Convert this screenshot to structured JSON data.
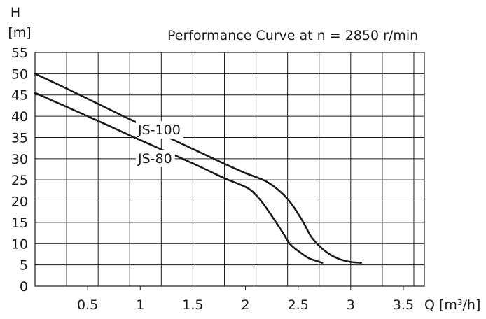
{
  "chart_data": {
    "type": "line",
    "title": "Performance Curve at n = 2850 r/min",
    "ylabel_symbol": "H",
    "ylabel_unit": "[m]",
    "xlabel": "Q [m³/h]",
    "xlim": [
      0,
      3.7
    ],
    "ylim": [
      0,
      55
    ],
    "grid": true,
    "x_gridlines": [
      0.3,
      0.6,
      0.9,
      1.2,
      1.5,
      1.8,
      2.1,
      2.4,
      2.7,
      3.0,
      3.3,
      3.6
    ],
    "y_gridlines": [
      5,
      10,
      15,
      20,
      25,
      30,
      35,
      40,
      45,
      50,
      55
    ],
    "x_ticks": [
      {
        "value": 0.5,
        "label": "0.5"
      },
      {
        "value": 1.0,
        "label": "1"
      },
      {
        "value": 1.5,
        "label": "1.5"
      },
      {
        "value": 2.0,
        "label": "2"
      },
      {
        "value": 2.5,
        "label": "2.5"
      },
      {
        "value": 3.0,
        "label": "3"
      },
      {
        "value": 3.5,
        "label": "3.5"
      }
    ],
    "y_ticks": [
      {
        "value": 0,
        "label": "0"
      },
      {
        "value": 5,
        "label": "5"
      },
      {
        "value": 10,
        "label": "10"
      },
      {
        "value": 15,
        "label": "15"
      },
      {
        "value": 20,
        "label": "20"
      },
      {
        "value": 25,
        "label": "25"
      },
      {
        "value": 30,
        "label": "30"
      },
      {
        "value": 35,
        "label": "35"
      },
      {
        "value": 40,
        "label": "40"
      },
      {
        "value": 45,
        "label": "45"
      },
      {
        "value": 50,
        "label": "50"
      },
      {
        "value": 55,
        "label": "55"
      }
    ],
    "series": [
      {
        "name": "JS-100",
        "x": [
          0,
          0.3,
          0.6,
          0.9,
          1.2,
          1.5,
          1.8,
          2.0,
          2.2,
          2.35,
          2.45,
          2.55,
          2.62,
          2.7,
          2.8,
          2.9,
          3.0,
          3.1
        ],
        "y": [
          50,
          46.5,
          42.9,
          39.3,
          35.8,
          32.3,
          28.8,
          26.6,
          24.6,
          21.8,
          18.9,
          15,
          11.8,
          9.5,
          7.5,
          6.3,
          5.7,
          5.5
        ]
      },
      {
        "name": "JS-80",
        "x": [
          0,
          0.3,
          0.6,
          0.9,
          1.2,
          1.5,
          1.8,
          1.95,
          2.05,
          2.15,
          2.25,
          2.35,
          2.42,
          2.5,
          2.6,
          2.68,
          2.73
        ],
        "y": [
          45.5,
          42.2,
          38.9,
          35.5,
          32.2,
          28.9,
          25.4,
          23.9,
          22.6,
          20.0,
          16.5,
          12.8,
          10.0,
          8.3,
          6.6,
          5.9,
          5.5
        ]
      }
    ]
  }
}
